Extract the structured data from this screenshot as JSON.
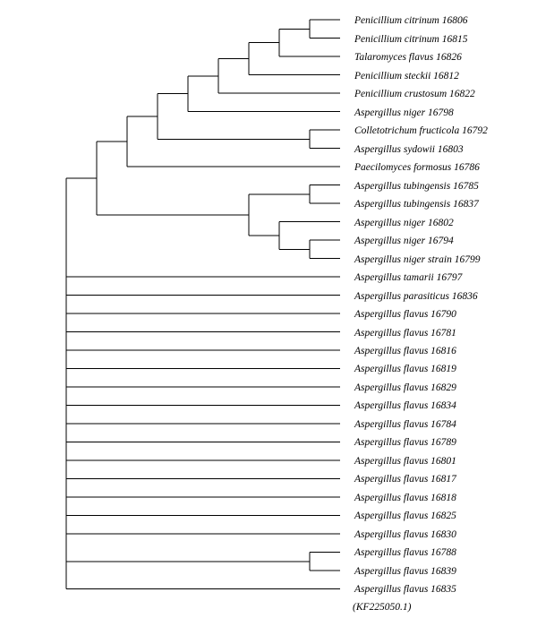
{
  "tree": {
    "leaves": [
      {
        "id": "L1",
        "label": "Penicillium citrinum 16806"
      },
      {
        "id": "L2",
        "label": "Penicillium citrinum 16815"
      },
      {
        "id": "L3",
        "label": "Talaromyces flavus 16826"
      },
      {
        "id": "L4",
        "label": "Penicillium steckii 16812"
      },
      {
        "id": "L5",
        "label": "Penicillium crustosum 16822"
      },
      {
        "id": "L6",
        "label": "Aspergillus niger 16798"
      },
      {
        "id": "L7",
        "label": "Colletotrichum fructicola 16792"
      },
      {
        "id": "L8",
        "label": "Aspergillus sydowii 16803"
      },
      {
        "id": "L9",
        "label": "Paecilomyces formosus 16786"
      },
      {
        "id": "L10",
        "label": "Aspergillus tubingensis 16785"
      },
      {
        "id": "L11",
        "label": "Aspergillus tubingensis 16837"
      },
      {
        "id": "L12",
        "label": "Aspergillus niger 16802"
      },
      {
        "id": "L13",
        "label": "Aspergillus niger 16794"
      },
      {
        "id": "L14",
        "label": "Aspergillus niger strain 16799"
      },
      {
        "id": "L15",
        "label": "Aspergillus tamarii 16797"
      },
      {
        "id": "L16",
        "label": "Aspergillus parasiticus 16836"
      },
      {
        "id": "L17",
        "label": "Aspergillus flavus 16790"
      },
      {
        "id": "L18",
        "label": "Aspergillus flavus 16781"
      },
      {
        "id": "L19",
        "label": "Aspergillus flavus 16816"
      },
      {
        "id": "L20",
        "label": "Aspergillus flavus 16819"
      },
      {
        "id": "L21",
        "label": "Aspergillus flavus 16829"
      },
      {
        "id": "L22",
        "label": "Aspergillus flavus 16834"
      },
      {
        "id": "L23",
        "label": "Aspergillus flavus 16784"
      },
      {
        "id": "L24",
        "label": "Aspergillus flavus 16789"
      },
      {
        "id": "L25",
        "label": "Aspergillus flavus 16801"
      },
      {
        "id": "L26",
        "label": "Aspergillus flavus 16817"
      },
      {
        "id": "L27",
        "label": "Aspergillus flavus 16818"
      },
      {
        "id": "L28",
        "label": "Aspergillus flavus 16825"
      },
      {
        "id": "L29",
        "label": "Aspergillus flavus 16830"
      },
      {
        "id": "L30",
        "label": "Aspergillus flavus 16788"
      },
      {
        "id": "L31",
        "label": "Aspergillus flavus 16839"
      },
      {
        "id": "L32",
        "label": "Aspergillus flavus 16835"
      }
    ],
    "outgroup_note": "(KF225050.1)",
    "topology": [
      "L32",
      [
        "L30",
        "L31"
      ],
      "L29",
      "L28",
      "L27",
      "L26",
      "L25",
      "L24",
      "L23",
      "L22",
      "L21",
      "L20",
      "L19",
      "L18",
      "L17",
      "L16",
      "L15",
      [
        [
          [
            "L10",
            "L11"
          ],
          [
            "L12",
            [
              "L13",
              "L14"
            ]
          ]
        ],
        [
          "L9",
          [
            [
              "L7",
              "L8"
            ],
            [
              "L6",
              [
                "L5",
                [
                  "L4",
                  [
                    "L3",
                    [
                      "L1",
                      "L2"
                    ]
                  ]
                ]
              ]
            ]
          ]
        ]
      ]
    ]
  }
}
